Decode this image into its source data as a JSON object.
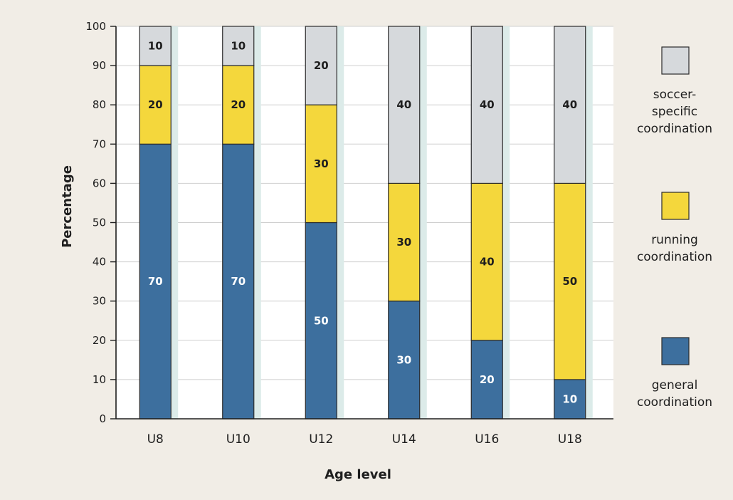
{
  "chart_data": {
    "type": "bar",
    "stacked": true,
    "categories": [
      "U8",
      "U10",
      "U12",
      "U14",
      "U16",
      "U18"
    ],
    "series": [
      {
        "name": "general coordination",
        "values": [
          70,
          70,
          50,
          30,
          20,
          10
        ],
        "color": "#3d6f9e",
        "label_color": "#ffffff"
      },
      {
        "name": "running coordination",
        "values": [
          20,
          20,
          30,
          30,
          40,
          50
        ],
        "color": "#f4d73c",
        "label_color": "#1e1e1e"
      },
      {
        "name": "soccer-specific coordination",
        "values": [
          10,
          10,
          20,
          40,
          40,
          40
        ],
        "color": "#d6d9dc",
        "label_color": "#1e1e1e"
      }
    ],
    "legend_lines": [
      [
        "soccer-",
        "specific",
        "coordination"
      ],
      [
        "running",
        "coordination"
      ],
      [
        "general",
        "coordination"
      ]
    ],
    "xlabel": "Age level",
    "ylabel": "Percentage",
    "ylim": [
      0,
      100
    ],
    "yticks": [
      0,
      10,
      20,
      30,
      40,
      50,
      60,
      70,
      80,
      90,
      100
    ],
    "grid": true,
    "legend_position": "right"
  }
}
